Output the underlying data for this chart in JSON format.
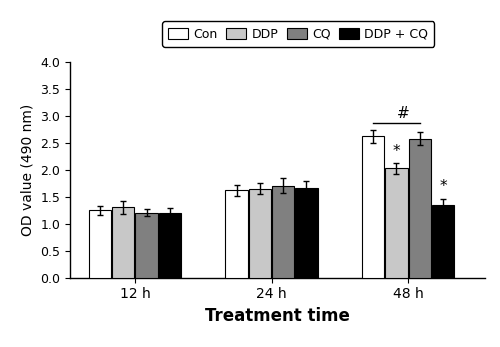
{
  "groups": [
    "12 h",
    "24 h",
    "48 h"
  ],
  "series_labels": [
    "Con",
    "DDP",
    "CQ",
    "DDP + CQ"
  ],
  "bar_colors": [
    "#ffffff",
    "#c8c8c8",
    "#808080",
    "#000000"
  ],
  "bar_edge_colors": [
    "#000000",
    "#000000",
    "#000000",
    "#000000"
  ],
  "values": [
    [
      1.25,
      1.31,
      1.21,
      1.21
    ],
    [
      1.62,
      1.65,
      1.71,
      1.67
    ],
    [
      2.63,
      2.03,
      2.58,
      1.35
    ]
  ],
  "errors": [
    [
      0.09,
      0.12,
      0.07,
      0.08
    ],
    [
      0.1,
      0.1,
      0.14,
      0.12
    ],
    [
      0.12,
      0.1,
      0.12,
      0.12
    ]
  ],
  "ylabel": "OD value (490 nm)",
  "xlabel": "Treatment time",
  "ylim": [
    0,
    4.0
  ],
  "yticks": [
    0.0,
    0.5,
    1.0,
    1.5,
    2.0,
    2.5,
    3.0,
    3.5,
    4.0
  ],
  "bar_width": 0.13,
  "group_centers": [
    0.3,
    1.1,
    1.9
  ]
}
